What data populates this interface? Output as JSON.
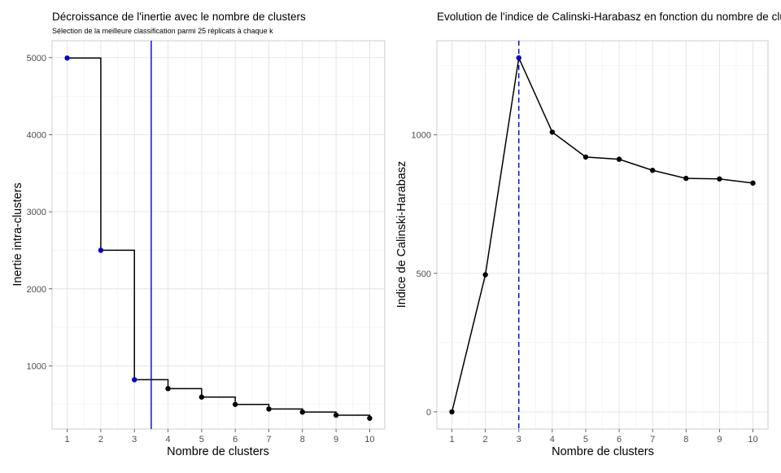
{
  "chart_data": [
    {
      "type": "step",
      "title": "Décroissance de l'inertie avec le nombre de clusters",
      "subtitle": "Sélection de la meilleure classification parmi 25 réplicats à chaque k",
      "xlabel": "Nombre de clusters",
      "ylabel": "Inertie intra-clusters",
      "xlim": [
        0.55,
        10.45
      ],
      "ylim": [
        180,
        5220
      ],
      "x_ticks": [
        "1",
        "2",
        "3",
        "4",
        "5",
        "6",
        "7",
        "8",
        "9",
        "10"
      ],
      "y_ticks": [
        "1000",
        "2000",
        "3000",
        "4000",
        "5000"
      ],
      "grid": true,
      "x": [
        1,
        2,
        3,
        4,
        5,
        6,
        7,
        8,
        9,
        10
      ],
      "values": [
        4995,
        2500,
        820,
        705,
        595,
        500,
        440,
        400,
        360,
        320
      ],
      "highlight_color": "#0000cc",
      "point_color": "#000000",
      "highlighted_points": [
        1,
        2,
        3
      ],
      "vline": 3.5,
      "vline_style": "solid"
    },
    {
      "type": "line",
      "title": "Evolution de l'indice de Calinski-Harabasz en fonction du nombre de clu",
      "xlabel": "Nombre de clusters",
      "ylabel": "Indice de Calinski-Harabasz",
      "xlim": [
        0.55,
        10.45
      ],
      "ylim": [
        -62,
        1340
      ],
      "x_ticks": [
        "1",
        "2",
        "3",
        "4",
        "5",
        "6",
        "7",
        "8",
        "9",
        "10"
      ],
      "y_ticks": [
        "0",
        "500",
        "1000"
      ],
      "grid": true,
      "x": [
        1,
        2,
        3,
        4,
        5,
        6,
        7,
        8,
        9,
        10
      ],
      "values": [
        0,
        495,
        1278,
        1010,
        920,
        912,
        872,
        843,
        841,
        826
      ],
      "highlight_color": "#0000cc",
      "point_color": "#000000",
      "highlighted_points": [
        3
      ],
      "vline": 3,
      "vline_style": "dashed"
    }
  ]
}
